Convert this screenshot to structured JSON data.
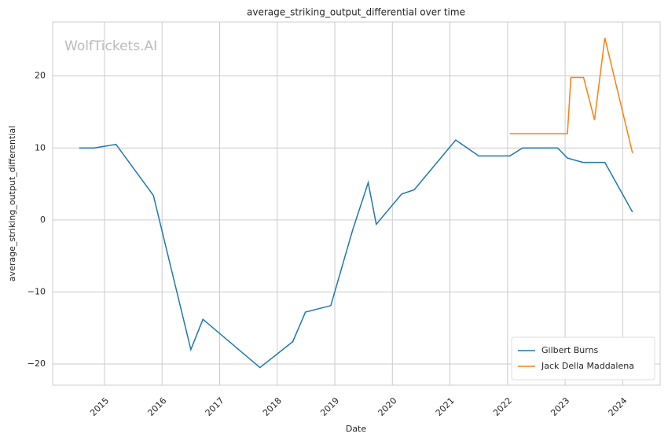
{
  "chart_data": {
    "type": "line",
    "title": "average_striking_output_differential over time",
    "x_label": "Date",
    "y_label": "average_striking_output_differential",
    "watermark": "WolfTickets.AI",
    "xlim": [
      2014.1,
      2024.65
    ],
    "xticks": [
      2015,
      2016,
      2017,
      2018,
      2019,
      2020,
      2021,
      2022,
      2023,
      2024
    ],
    "ylim": [
      -22.95,
      27.5
    ],
    "yticks": [
      {
        "value": -20,
        "label": "−20"
      },
      {
        "value": -10,
        "label": "−10"
      },
      0,
      10,
      20
    ],
    "grid": true,
    "legend_position": "lower right",
    "series": [
      {
        "name": "Gilbert Burns",
        "color": "#1f77b4",
        "x": [
          2014.56,
          2014.82,
          2015.2,
          2015.85,
          2016.5,
          2016.71,
          2017.7,
          2018.27,
          2018.49,
          2018.93,
          2019.31,
          2019.58,
          2019.72,
          2020.16,
          2020.38,
          2021.1,
          2021.5,
          2022.04,
          2022.26,
          2022.87,
          2023.04,
          2023.31,
          2023.69,
          2024.17
        ],
        "values": [
          10.0,
          10.0,
          10.5,
          3.4,
          -18.0,
          -13.8,
          -20.5,
          -16.9,
          -12.8,
          -11.9,
          -1.4,
          5.2,
          -0.6,
          3.6,
          4.2,
          11.1,
          8.9,
          8.9,
          10.0,
          10.0,
          8.6,
          8.0,
          8.0,
          1.1
        ]
      },
      {
        "name": "Jack Della Maddalena",
        "color": "#ff7f0e",
        "x": [
          2022.04,
          2023.04,
          2023.1,
          2023.32,
          2023.51,
          2023.69,
          2024.17
        ],
        "values": [
          12.0,
          12.0,
          19.8,
          19.8,
          13.9,
          25.3,
          9.3
        ]
      }
    ]
  }
}
